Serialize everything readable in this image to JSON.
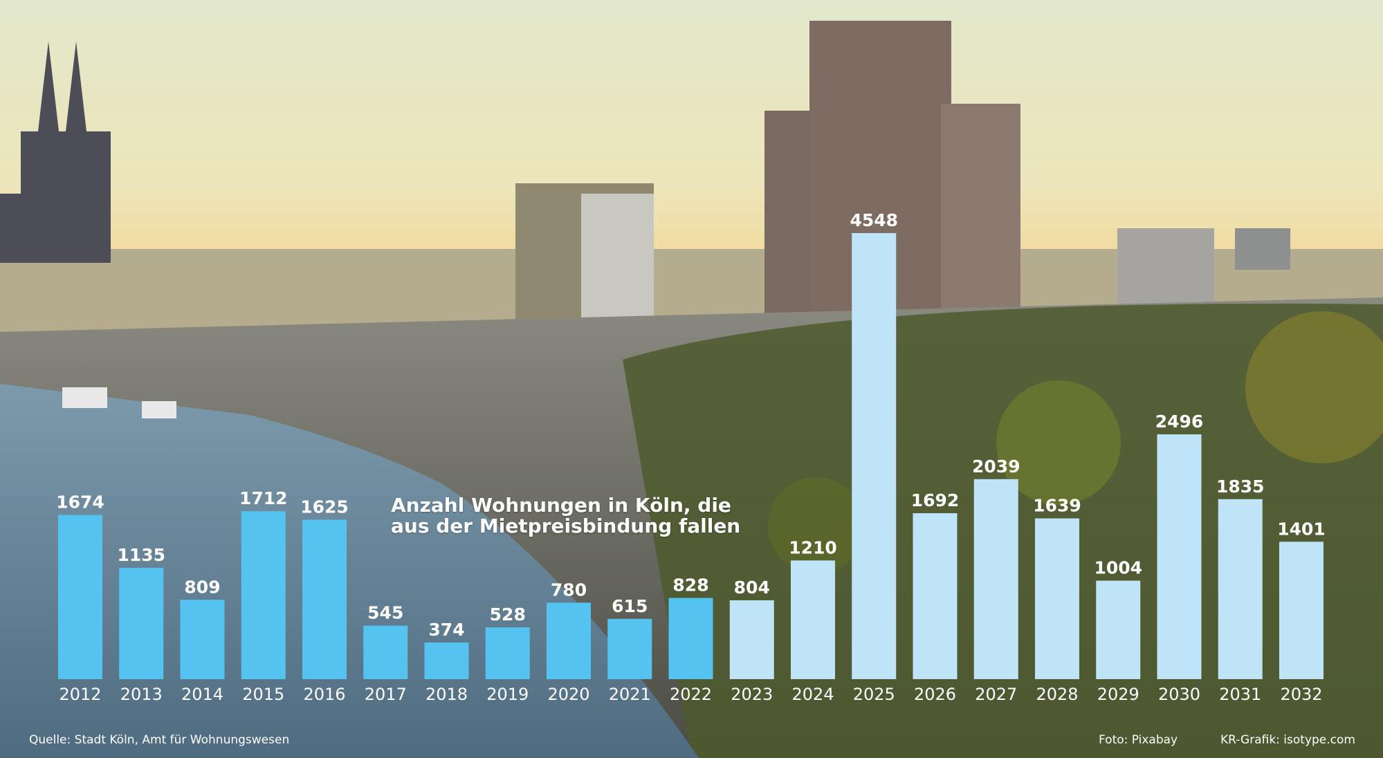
{
  "title_line1": "Anzahl Wohnungen in Köln, die",
  "title_line2": "aus der Mietpreisbindung fallen",
  "source": "Quelle: Stadt Köln, Amt für Wohnungswesen",
  "photo_credit": "Foto: Pixabay",
  "graphic_credit": "KR-Grafik: isotype.com",
  "colors": {
    "past": "#55c3ef",
    "future": "#bfe4f8",
    "text": "#ffffff"
  },
  "chart_data": {
    "type": "bar",
    "title": "Anzahl Wohnungen in Köln, die aus der Mietpreisbindung fallen",
    "categories": [
      "2012",
      "2013",
      "2014",
      "2015",
      "2016",
      "2017",
      "2018",
      "2019",
      "2020",
      "2021",
      "2022",
      "2023",
      "2024",
      "2025",
      "2026",
      "2027",
      "2028",
      "2029",
      "2030",
      "2031",
      "2032"
    ],
    "values": [
      1674,
      1135,
      809,
      1712,
      1625,
      545,
      374,
      528,
      780,
      615,
      828,
      804,
      1210,
      4548,
      1692,
      2039,
      1639,
      1004,
      2496,
      1835,
      1401
    ],
    "bar_colors": [
      "past",
      "past",
      "past",
      "past",
      "past",
      "past",
      "past",
      "past",
      "past",
      "past",
      "past",
      "future",
      "future",
      "future",
      "future",
      "future",
      "future",
      "future",
      "future",
      "future",
      "future"
    ],
    "xlabel": "",
    "ylabel": "",
    "grid": false,
    "legend": "none"
  }
}
